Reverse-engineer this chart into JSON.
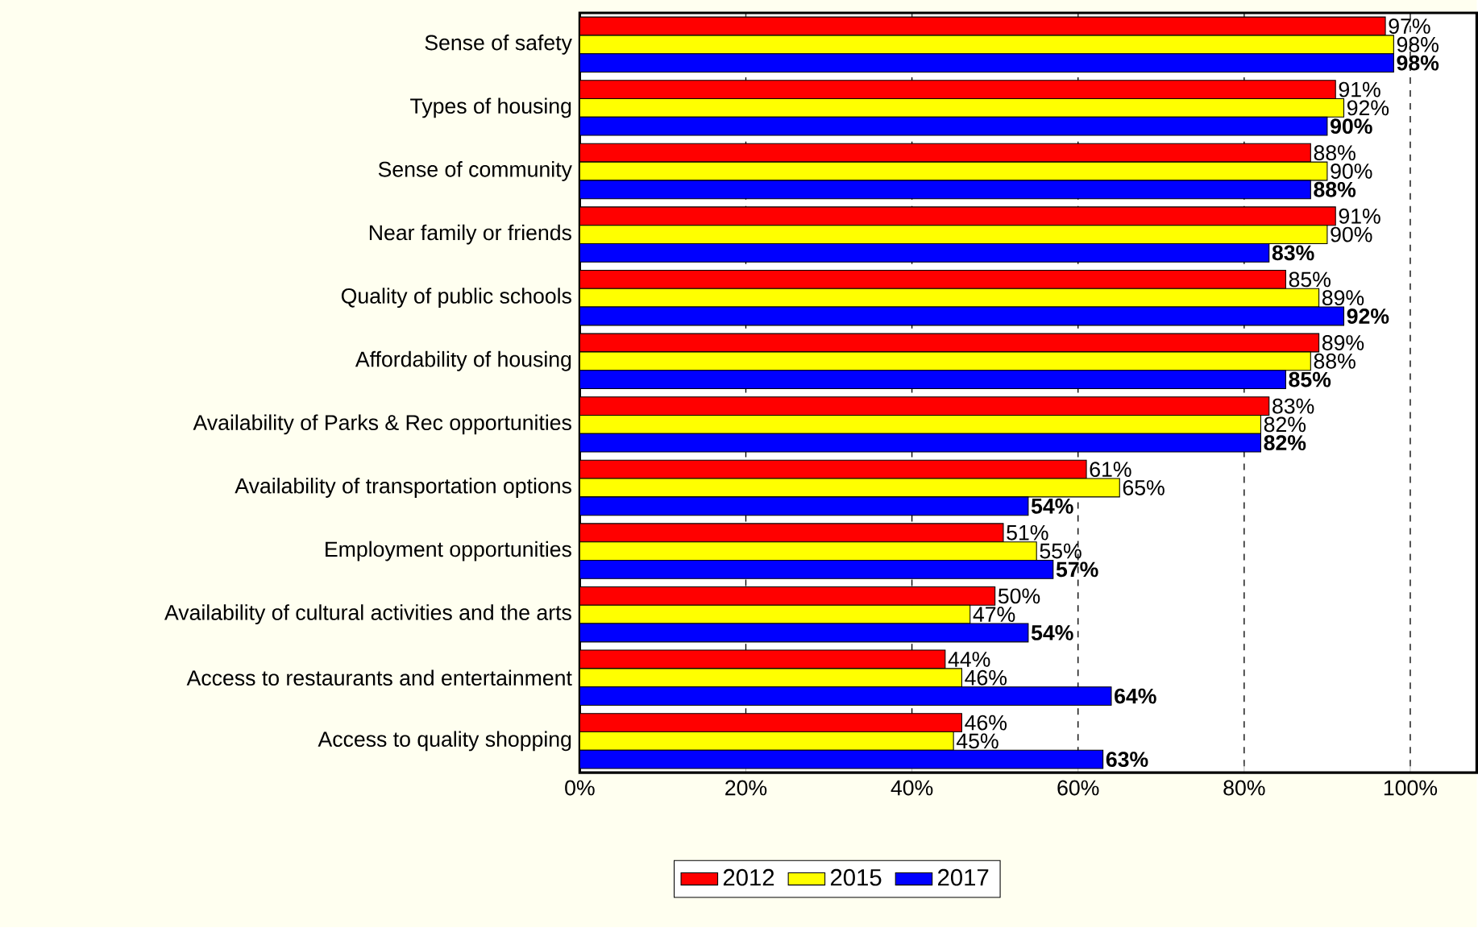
{
  "chart_data": {
    "type": "bar",
    "orientation": "horizontal",
    "categories": [
      "Sense of safety",
      "Types of housing",
      "Sense of community",
      "Near family or friends",
      "Quality of public schools",
      "Affordability of housing",
      "Availability of Parks & Rec opportunities",
      "Availability of transportation options",
      "Employment opportunities",
      "Availability of cultural activities and the arts",
      "Access to restaurants and entertainment",
      "Access to quality shopping"
    ],
    "series": [
      {
        "name": "2012",
        "color": "#ff0000",
        "values": [
          97,
          91,
          88,
          91,
          85,
          89,
          83,
          61,
          51,
          50,
          44,
          46
        ],
        "value_labels": [
          "97%",
          "91%",
          "88%",
          "91%",
          "85%",
          "89%",
          "83%",
          "61%",
          "51%",
          "50%",
          "44%",
          "46%"
        ]
      },
      {
        "name": "2015",
        "color": "#ffff00",
        "values": [
          98,
          92,
          90,
          90,
          89,
          88,
          82,
          65,
          55,
          47,
          46,
          45
        ],
        "value_labels": [
          "98%",
          "92%",
          "90%",
          "90%",
          "89%",
          "88%",
          "82%",
          "65%",
          "55%",
          "47%",
          "46%",
          "45%"
        ]
      },
      {
        "name": "2017",
        "color": "#0000ff",
        "values": [
          98,
          90,
          88,
          83,
          92,
          85,
          82,
          54,
          57,
          54,
          64,
          63
        ],
        "value_labels": [
          "98%",
          "90%",
          "88%",
          "83%",
          "92%",
          "85%",
          "82%",
          "54%",
          "57%",
          "54%",
          "64%",
          "63%"
        ]
      }
    ],
    "xlim": [
      0,
      108
    ],
    "xticks": [
      {
        "value": 0,
        "label": "0%"
      },
      {
        "value": 20,
        "label": "20%"
      },
      {
        "value": 40,
        "label": "40%"
      },
      {
        "value": 60,
        "label": "60%"
      },
      {
        "value": 80,
        "label": "80%"
      },
      {
        "value": 100,
        "label": "100%"
      }
    ],
    "grid": "x",
    "legend": "bottom"
  }
}
